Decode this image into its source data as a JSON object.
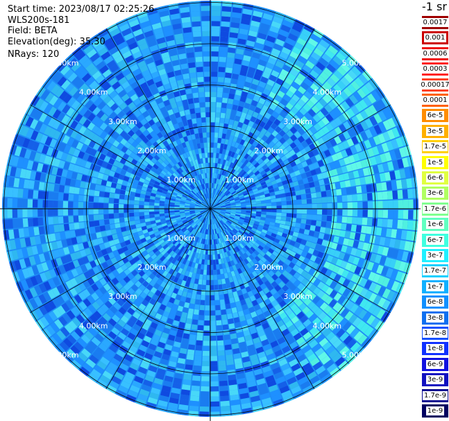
{
  "header": {
    "start_time": "Start time: 2023/08/17 02:25:26",
    "device": "WLS200s-181",
    "field": "Field: BETA",
    "elevation": "Elevation(deg): 35.30",
    "nrays": "NRays: 120"
  },
  "chart_data": {
    "type": "heatmap",
    "projection": "polar",
    "n_rays": 120,
    "range_rings_km": [
      1,
      2,
      3,
      4,
      5
    ],
    "ring_labels": [
      "1.00km",
      "2.00km",
      "3.00km",
      "4.00km",
      "5.00km"
    ],
    "colorbar": {
      "unit_label": "-1 sr",
      "ticks": [
        "0.0017",
        "0.001",
        "0.0006",
        "0.0003",
        "0.00017",
        "0.0001",
        "6e-5",
        "3e-5",
        "1.7e-5",
        "1e-5",
        "6e-6",
        "3e-6",
        "1.7e-6",
        "1e-6",
        "6e-7",
        "3e-7",
        "1.7e-7",
        "1e-7",
        "6e-8",
        "3e-8",
        "1.7e-8",
        "1e-8",
        "6e-9",
        "3e-9",
        "1.7e-9",
        "1e-9"
      ],
      "colors": [
        "#a00000",
        "#cc0000",
        "#ee1010",
        "#ff2020",
        "#ff4020",
        "#ff6000",
        "#ff8c00",
        "#ffb000",
        "#ffd000",
        "#ffff00",
        "#e0ff40",
        "#b0ff60",
        "#80ff90",
        "#60ffc0",
        "#40ffe0",
        "#20f0ff",
        "#10d0ff",
        "#10b0ff",
        "#1090ff",
        "#1070f0",
        "#1050ff",
        "#1030ff",
        "#1010e0",
        "#1010c0",
        "#0a0a90",
        "#000060"
      ]
    }
  }
}
